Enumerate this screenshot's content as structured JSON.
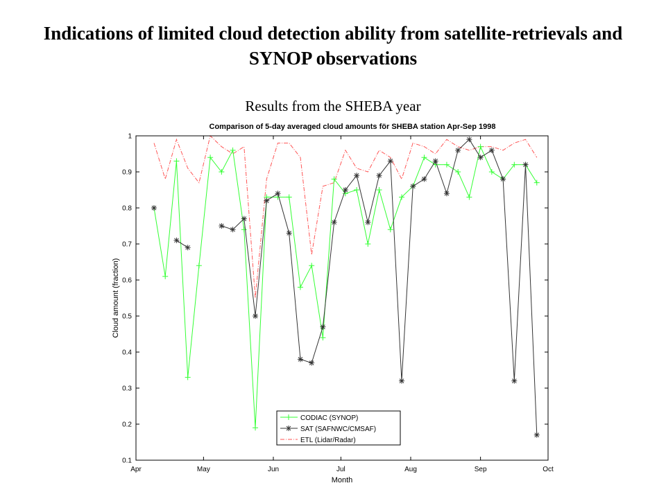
{
  "slide": {
    "title": "Indications of limited cloud detection ability from satellite-retrievals and SYNOP observations",
    "subtitle": "Results from the SHEBA year"
  },
  "chart_data": {
    "type": "line",
    "title": "Comparison of 5-day averaged cloud amounts för SHEBA station Apr-Sep 1998",
    "xlabel": "Month",
    "ylabel": "Cloud amount (fraction)",
    "xlim": [
      0,
      183
    ],
    "ylim": [
      0.1,
      1.0
    ],
    "x_ticks": [
      {
        "x": 0,
        "label": "Apr"
      },
      {
        "x": 30,
        "label": "May"
      },
      {
        "x": 61,
        "label": "Jun"
      },
      {
        "x": 91,
        "label": "Jul"
      },
      {
        "x": 122,
        "label": "Aug"
      },
      {
        "x": 153,
        "label": "Sep"
      },
      {
        "x": 183,
        "label": "Oct"
      }
    ],
    "y_ticks": [
      0.1,
      0.2,
      0.3,
      0.4,
      0.5,
      0.6,
      0.7,
      0.8,
      0.9,
      1
    ],
    "legend_position": "bottom-center",
    "series": [
      {
        "name": "CODIAC (SYNOP)",
        "color": "#33ff33",
        "marker": "plus",
        "dash": "solid",
        "points": [
          [
            8,
            0.8
          ],
          [
            13,
            0.61
          ],
          [
            18,
            0.93
          ],
          [
            23,
            0.33
          ],
          [
            28,
            0.64
          ],
          [
            33,
            0.94
          ],
          [
            38,
            0.9
          ],
          [
            43,
            0.96
          ],
          [
            48,
            0.74
          ],
          [
            53,
            0.19
          ],
          [
            58,
            0.83
          ],
          [
            63,
            0.83
          ],
          [
            68,
            0.83
          ],
          [
            73,
            0.58
          ],
          [
            78,
            0.64
          ],
          [
            83,
            0.44
          ],
          [
            88,
            0.88
          ],
          [
            93,
            0.84
          ],
          [
            98,
            0.85
          ],
          [
            103,
            0.7
          ],
          [
            108,
            0.85
          ],
          [
            113,
            0.74
          ],
          [
            118,
            0.83
          ],
          [
            123,
            0.86
          ],
          [
            128,
            0.94
          ],
          [
            133,
            0.92
          ],
          [
            138,
            0.92
          ],
          [
            143,
            0.9
          ],
          [
            148,
            0.83
          ],
          [
            153,
            0.97
          ],
          [
            158,
            0.9
          ],
          [
            163,
            0.88
          ],
          [
            168,
            0.92
          ],
          [
            173,
            0.92
          ],
          [
            178,
            0.87
          ]
        ]
      },
      {
        "name": "SAT (SAFNWC/CMSAF)",
        "color": "#333333",
        "marker": "asterisk",
        "dash": "solid",
        "segments": [
          [
            [
              8,
              0.8
            ]
          ],
          [
            [
              18,
              0.71
            ],
            [
              23,
              0.69
            ]
          ],
          [
            [
              38,
              0.75
            ],
            [
              43,
              0.74
            ],
            [
              48,
              0.77
            ],
            [
              53,
              0.5
            ],
            [
              58,
              0.82
            ],
            [
              63,
              0.84
            ],
            [
              68,
              0.73
            ],
            [
              73,
              0.38
            ],
            [
              78,
              0.37
            ],
            [
              83,
              0.47
            ],
            [
              88,
              0.76
            ],
            [
              93,
              0.85
            ],
            [
              98,
              0.89
            ],
            [
              103,
              0.76
            ],
            [
              108,
              0.89
            ],
            [
              113,
              0.93
            ],
            [
              118,
              0.32
            ],
            [
              123,
              0.86
            ],
            [
              128,
              0.88
            ],
            [
              133,
              0.93
            ],
            [
              138,
              0.84
            ],
            [
              143,
              0.96
            ],
            [
              148,
              0.99
            ],
            [
              153,
              0.94
            ],
            [
              158,
              0.96
            ],
            [
              163,
              0.88
            ],
            [
              168,
              0.32
            ],
            [
              173,
              0.92
            ],
            [
              178,
              0.17
            ]
          ]
        ]
      },
      {
        "name": "ETL (Lidar/Radar)",
        "color": "#ff5555",
        "marker": "none",
        "dash": "dashdot",
        "points": [
          [
            8,
            0.98
          ],
          [
            13,
            0.88
          ],
          [
            18,
            0.99
          ],
          [
            23,
            0.91
          ],
          [
            28,
            0.87
          ],
          [
            33,
            1.0
          ],
          [
            38,
            0.97
          ],
          [
            43,
            0.95
          ],
          [
            48,
            0.97
          ],
          [
            53,
            0.55
          ],
          [
            58,
            0.88
          ],
          [
            63,
            0.98
          ],
          [
            68,
            0.98
          ],
          [
            73,
            0.94
          ],
          [
            78,
            0.67
          ],
          [
            83,
            0.86
          ],
          [
            88,
            0.87
          ],
          [
            93,
            0.96
          ],
          [
            98,
            0.91
          ],
          [
            103,
            0.9
          ],
          [
            108,
            0.96
          ],
          [
            113,
            0.94
          ],
          [
            118,
            0.88
          ],
          [
            123,
            0.98
          ],
          [
            128,
            0.97
          ],
          [
            133,
            0.95
          ],
          [
            138,
            0.99
          ],
          [
            143,
            0.97
          ],
          [
            148,
            0.96
          ],
          [
            153,
            0.97
          ],
          [
            158,
            0.97
          ],
          [
            163,
            0.96
          ],
          [
            168,
            0.98
          ],
          [
            173,
            0.99
          ],
          [
            178,
            0.94
          ]
        ]
      }
    ]
  }
}
